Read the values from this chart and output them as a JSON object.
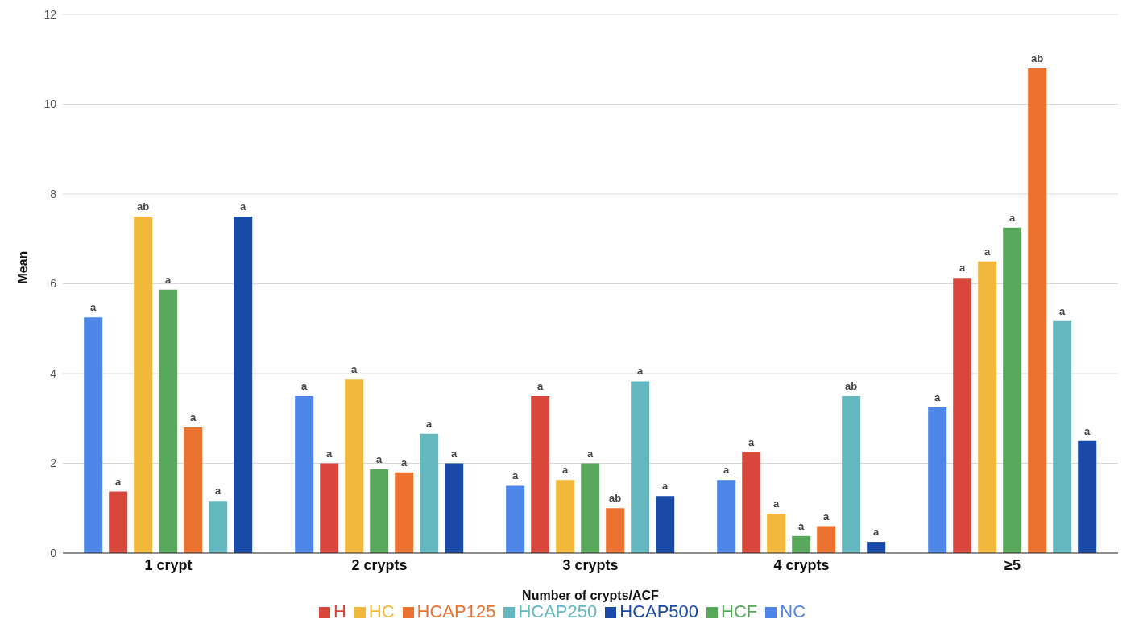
{
  "chart_data": {
    "type": "bar",
    "xlabel": "Number of crypts/ACF",
    "ylabel": "Mean",
    "categories": [
      "1 crypt",
      "2 crypts",
      "3 crypts",
      "4 crypts",
      "≥5"
    ],
    "series": [
      {
        "name": "NC",
        "color": "#4e86e8",
        "values": [
          5.25,
          3.5,
          1.5,
          1.63,
          3.25
        ],
        "value_labels": [
          "a",
          "a",
          "a",
          "a",
          "a"
        ]
      },
      {
        "name": "H",
        "color": "#d9473c",
        "values": [
          1.37,
          2,
          3.5,
          2.25,
          6.13
        ],
        "value_labels": [
          "a",
          "a",
          "a",
          "a",
          "a"
        ]
      },
      {
        "name": "HC",
        "color": "#f2b83b",
        "values": [
          7.5,
          3.87,
          1.63,
          0.88,
          6.5
        ],
        "value_labels": [
          "ab",
          "a",
          "a",
          "a",
          "a"
        ]
      },
      {
        "name": "HCF",
        "color": "#57a85a",
        "values": [
          5.87,
          1.87,
          2,
          0.38,
          7.25
        ],
        "value_labels": [
          "a",
          "a",
          "a",
          "a",
          "a"
        ]
      },
      {
        "name": "HCAP125",
        "color": "#ec7230",
        "values": [
          2.8,
          1.8,
          1,
          0.6,
          10.8
        ],
        "value_labels": [
          "a",
          "a",
          "ab",
          "a",
          "ab"
        ]
      },
      {
        "name": "HCAP250",
        "color": "#63b7bf",
        "values": [
          1.16,
          2.66,
          3.83,
          3.5,
          5.17
        ],
        "value_labels": [
          "a",
          "a",
          "a",
          "ab",
          "a"
        ]
      },
      {
        "name": "HCAP500",
        "color": "#1a4aa8",
        "values": [
          7.5,
          2,
          1.27,
          0.25,
          2.5
        ],
        "value_labels": [
          "a",
          "a",
          "a",
          "a",
          "a"
        ]
      }
    ],
    "ylim": [
      0,
      12
    ],
    "yticks": [
      0,
      2,
      4,
      6,
      8,
      10,
      12
    ],
    "grid": "y",
    "legend": "bottom"
  }
}
